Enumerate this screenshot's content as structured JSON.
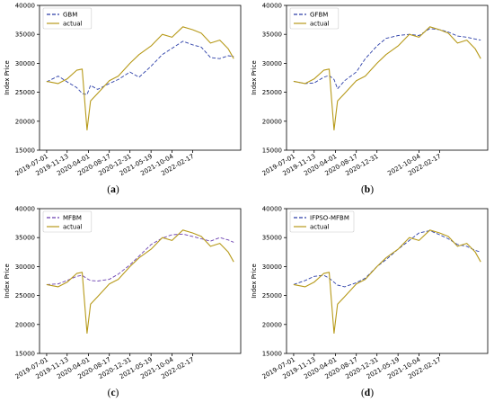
{
  "chart_data": [
    {
      "type": "line",
      "caption_letter": "a",
      "ylabel": "Index Price",
      "ylim": [
        15000,
        40000
      ],
      "yticks": [
        15000,
        20000,
        25000,
        30000,
        35000,
        40000
      ],
      "xlim": [
        "2019-05-15",
        "2022-12-31"
      ],
      "xtick_labels": [
        "2019-07-01",
        "2019-11-13",
        "2020-04-01",
        "2020-08-17",
        "2020-12-31",
        "2021-05-19",
        "2021-10-04",
        "2022-02-17"
      ],
      "legend_position": "top-left",
      "x": [
        "2019-07-01",
        "2019-09-15",
        "2019-11-13",
        "2020-01-15",
        "2020-02-20",
        "2020-03-23",
        "2020-04-15",
        "2020-06-01",
        "2020-08-17",
        "2020-10-15",
        "2020-12-31",
        "2021-03-01",
        "2021-05-19",
        "2021-08-01",
        "2021-10-04",
        "2021-12-15",
        "2022-02-17",
        "2022-04-15",
        "2022-06-15",
        "2022-08-15",
        "2022-10-10",
        "2022-11-15"
      ],
      "series": [
        {
          "name": "GBM",
          "color": "#2c3fa8",
          "dash": "4,2",
          "values": [
            26800,
            27800,
            26800,
            25800,
            24800,
            24600,
            26200,
            25500,
            26500,
            27200,
            28500,
            27600,
            29500,
            31500,
            32600,
            33800,
            33200,
            32800,
            31000,
            30800,
            31300,
            31200
          ]
        },
        {
          "name": "actual",
          "color": "#b79a1a",
          "dash": "",
          "values": [
            26900,
            26500,
            27300,
            28800,
            29000,
            18500,
            23500,
            24800,
            27000,
            27800,
            30000,
            31500,
            33000,
            35000,
            34500,
            36300,
            35800,
            35200,
            33500,
            34000,
            32500,
            30800
          ]
        }
      ]
    },
    {
      "type": "line",
      "caption_letter": "b",
      "ylabel": "Index Price",
      "ylim": [
        15000,
        40000
      ],
      "yticks": [
        15000,
        20000,
        25000,
        30000,
        35000,
        40000
      ],
      "xlim": [
        "2019-05-15",
        "2022-12-31"
      ],
      "xtick_labels": [
        "2019-07-01",
        "2019-11-13",
        "2020-04-01",
        "2020-08-17",
        "2020-12-31",
        "2021-10-04",
        "2022-02-17"
      ],
      "legend_position": "top-left",
      "x": [
        "2019-07-01",
        "2019-09-15",
        "2019-11-13",
        "2020-01-15",
        "2020-02-20",
        "2020-03-23",
        "2020-04-15",
        "2020-06-01",
        "2020-08-17",
        "2020-10-15",
        "2020-12-31",
        "2021-03-01",
        "2021-05-19",
        "2021-08-01",
        "2021-10-04",
        "2021-12-15",
        "2022-02-17",
        "2022-04-15",
        "2022-06-15",
        "2022-08-15",
        "2022-10-10",
        "2022-11-15"
      ],
      "series": [
        {
          "name": "GFBM",
          "color": "#2c3fa8",
          "dash": "4,2",
          "values": [
            26900,
            26500,
            26600,
            27600,
            27900,
            27200,
            25600,
            27000,
            28500,
            30800,
            33000,
            34300,
            34800,
            35000,
            34800,
            36000,
            35800,
            35400,
            34700,
            34500,
            34200,
            34000
          ]
        },
        {
          "name": "actual",
          "color": "#b79a1a",
          "dash": "",
          "values": [
            26900,
            26500,
            27300,
            28800,
            29000,
            18500,
            23500,
            24800,
            27000,
            27800,
            30000,
            31500,
            33000,
            35000,
            34500,
            36300,
            35800,
            35200,
            33500,
            34000,
            32500,
            30800
          ]
        }
      ]
    },
    {
      "type": "line",
      "caption_letter": "c",
      "ylabel": "Index Price",
      "ylim": [
        15000,
        40000
      ],
      "yticks": [
        15000,
        20000,
        25000,
        30000,
        35000,
        40000
      ],
      "xlim": [
        "2019-05-15",
        "2022-12-31"
      ],
      "xtick_labels": [
        "2019-07-01",
        "2019-11-13",
        "2020-04-01",
        "2020-08-17",
        "2020-12-31",
        "2021-05-19",
        "2021-10-04",
        "2022-02-17"
      ],
      "legend_position": "top-left",
      "x": [
        "2019-07-01",
        "2019-09-15",
        "2019-11-13",
        "2020-01-15",
        "2020-02-20",
        "2020-03-23",
        "2020-04-15",
        "2020-06-01",
        "2020-08-17",
        "2020-10-15",
        "2020-12-31",
        "2021-03-01",
        "2021-05-19",
        "2021-08-01",
        "2021-10-04",
        "2021-12-15",
        "2022-02-17",
        "2022-04-15",
        "2022-06-15",
        "2022-08-15",
        "2022-10-10",
        "2022-11-15"
      ],
      "series": [
        {
          "name": "MFBM",
          "color": "#6a3fb0",
          "dash": "4,2",
          "values": [
            26900,
            27000,
            27600,
            28300,
            28500,
            27900,
            27600,
            27500,
            27800,
            28700,
            30300,
            31800,
            33800,
            34900,
            35500,
            35600,
            35200,
            34800,
            34400,
            35000,
            34600,
            34200
          ]
        },
        {
          "name": "actual",
          "color": "#b79a1a",
          "dash": "",
          "values": [
            26900,
            26500,
            27300,
            28800,
            29000,
            18500,
            23500,
            24800,
            27000,
            27800,
            30000,
            31500,
            33000,
            35000,
            34500,
            36300,
            35800,
            35200,
            33500,
            34000,
            32500,
            30800
          ]
        }
      ]
    },
    {
      "type": "line",
      "caption_letter": "d",
      "ylabel": "Index Price",
      "ylim": [
        15000,
        40000
      ],
      "yticks": [
        15000,
        20000,
        25000,
        30000,
        35000,
        40000
      ],
      "xlim": [
        "2019-05-15",
        "2022-12-31"
      ],
      "xtick_labels": [
        "2019-07-01",
        "2019-11-13",
        "2020-04-01",
        "2020-08-17",
        "2020-12-31",
        "2021-05-19",
        "2021-10-04",
        "2022-02-17"
      ],
      "legend_position": "top-left",
      "x": [
        "2019-07-01",
        "2019-09-15",
        "2019-11-13",
        "2020-01-15",
        "2020-02-20",
        "2020-03-23",
        "2020-04-15",
        "2020-06-01",
        "2020-08-17",
        "2020-10-15",
        "2020-12-31",
        "2021-03-01",
        "2021-05-19",
        "2021-08-01",
        "2021-10-04",
        "2021-12-15",
        "2022-02-17",
        "2022-04-15",
        "2022-06-15",
        "2022-08-15",
        "2022-10-10",
        "2022-11-15"
      ],
      "series": [
        {
          "name": "IFPSO-MFBM",
          "color": "#2c3fa8",
          "dash": "4,2",
          "values": [
            26900,
            27600,
            28300,
            28500,
            28000,
            27300,
            26800,
            26500,
            27200,
            28000,
            30000,
            31200,
            33000,
            34500,
            35800,
            36200,
            35500,
            34800,
            33800,
            33500,
            32800,
            32500
          ]
        },
        {
          "name": "actual",
          "color": "#b79a1a",
          "dash": "",
          "values": [
            26900,
            26500,
            27300,
            28800,
            29000,
            18500,
            23500,
            24800,
            27000,
            27800,
            30000,
            31500,
            33000,
            35000,
            34500,
            36300,
            35800,
            35200,
            33500,
            34000,
            32500,
            30800
          ]
        }
      ]
    }
  ]
}
